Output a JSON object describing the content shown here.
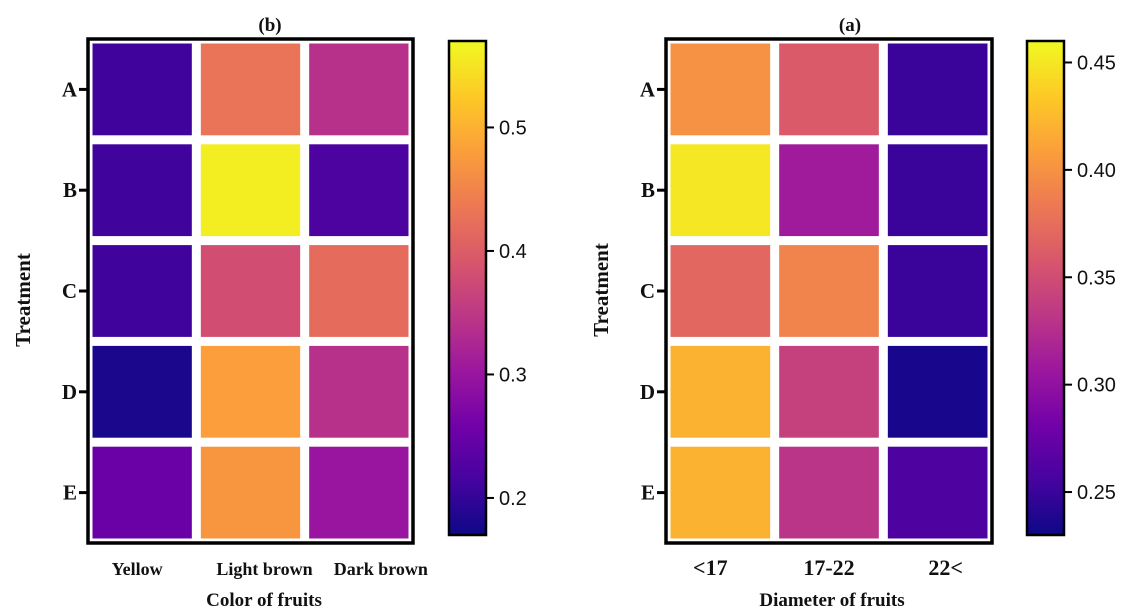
{
  "chart_data": [
    {
      "type": "heatmap",
      "title": "(b)",
      "xlabel": "Color of fruits",
      "ylabel": "Treatment",
      "x_categories": [
        "Yellow",
        "Light brown",
        "Dark brown"
      ],
      "y_categories": [
        "A",
        "B",
        "C",
        "D",
        "E"
      ],
      "values": [
        [
          0.21,
          0.43,
          0.34
        ],
        [
          0.21,
          0.56,
          0.22
        ],
        [
          0.21,
          0.38,
          0.42
        ],
        [
          0.18,
          0.48,
          0.34
        ],
        [
          0.25,
          0.47,
          0.3
        ]
      ],
      "colorbar": {
        "range": [
          0.17,
          0.57
        ],
        "ticks": [
          0.2,
          0.3,
          0.4,
          0.5
        ],
        "tick_labels": [
          "0.2",
          "0.3",
          "0.4",
          "0.5"
        ],
        "colormap": "plasma"
      }
    },
    {
      "type": "heatmap",
      "title": "(a)",
      "xlabel": "Diameter of fruits",
      "ylabel": "Treatment",
      "x_categories": [
        "<17",
        "17-22",
        "22<"
      ],
      "y_categories": [
        "A",
        "B",
        "C",
        "D",
        "E"
      ],
      "values": [
        [
          0.4,
          0.36,
          0.25
        ],
        [
          0.45,
          0.31,
          0.25
        ],
        [
          0.37,
          0.39,
          0.25
        ],
        [
          0.42,
          0.34,
          0.235
        ],
        [
          0.42,
          0.33,
          0.26
        ]
      ],
      "colorbar": {
        "range": [
          0.23,
          0.46
        ],
        "ticks": [
          0.25,
          0.3,
          0.35,
          0.4,
          0.45
        ],
        "tick_labels": [
          "0.25",
          "0.30",
          "0.35",
          "0.40",
          "0.45"
        ],
        "colormap": "plasma"
      }
    }
  ],
  "colors": {
    "plasma_stops": [
      "#0d0887",
      "#46039f",
      "#7201a8",
      "#9c179e",
      "#bd3786",
      "#d8576b",
      "#ed7953",
      "#fb9f3a",
      "#fdca26",
      "#f0f921"
    ]
  }
}
